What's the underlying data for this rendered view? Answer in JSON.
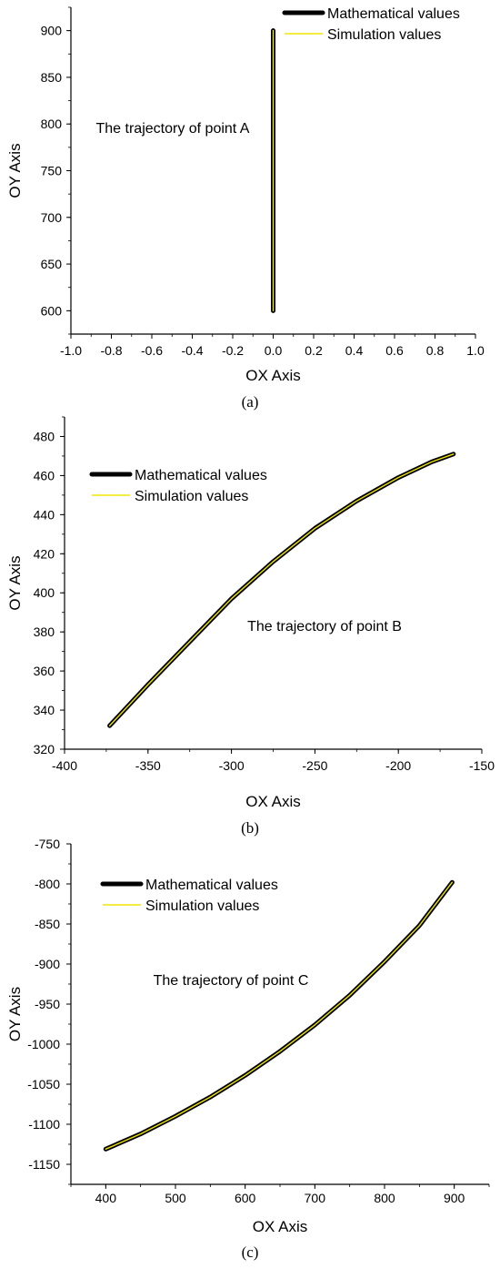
{
  "colors": {
    "mathematical": "#000000",
    "simulation": "#f0e600",
    "axis": "#000000"
  },
  "chart_data": [
    {
      "type": "line",
      "panel": "a",
      "caption": "(a)",
      "xlabel": "OX Axis",
      "ylabel": "OY Axis",
      "xlim": [
        -1.0,
        1.0
      ],
      "ylim": [
        575,
        925
      ],
      "x_ticks": [
        -1.0,
        -0.8,
        -0.6,
        -0.4,
        -0.2,
        0.0,
        0.2,
        0.4,
        0.6,
        0.8,
        1.0
      ],
      "x_tick_labels": [
        "-1.0",
        "-0.8",
        "-0.6",
        "-0.4",
        "-0.2",
        "0.0",
        "0.2",
        "0.4",
        "0.6",
        "0.8",
        "1.0"
      ],
      "y_ticks": [
        600,
        650,
        700,
        750,
        800,
        850,
        900
      ],
      "y_tick_labels": [
        "600",
        "650",
        "700",
        "750",
        "800",
        "850",
        "900"
      ],
      "annotation": "The trajectory of point A",
      "legend": [
        "Mathematical values",
        "Simulation values"
      ],
      "legend_position": "top-right",
      "grid": false,
      "series": [
        {
          "name": "Mathematical values",
          "x": [
            0,
            0
          ],
          "y": [
            600,
            900
          ]
        },
        {
          "name": "Simulation values",
          "x": [
            0,
            0
          ],
          "y": [
            600,
            900
          ]
        }
      ]
    },
    {
      "type": "line",
      "panel": "b",
      "caption": "(b)",
      "xlabel": "OX Axis",
      "ylabel": "OY Axis",
      "xlim": [
        -400,
        -150
      ],
      "ylim": [
        320,
        490
      ],
      "x_ticks": [
        -400,
        -350,
        -300,
        -250,
        -200,
        -150
      ],
      "x_tick_labels": [
        "-400",
        "-350",
        "-300",
        "-250",
        "-200",
        "-150"
      ],
      "y_ticks": [
        320,
        340,
        360,
        380,
        400,
        420,
        440,
        460,
        480
      ],
      "y_tick_labels": [
        "320",
        "340",
        "360",
        "380",
        "400",
        "420",
        "440",
        "460",
        "480"
      ],
      "annotation": "The trajectory of point B",
      "legend": [
        "Mathematical values",
        "Simulation values"
      ],
      "legend_position": "top-left",
      "grid": false,
      "series": [
        {
          "name": "Mathematical values",
          "x": [
            -373,
            -350,
            -325,
            -300,
            -275,
            -250,
            -225,
            -200,
            -180,
            -167
          ],
          "y": [
            332,
            353,
            375,
            397,
            416,
            433,
            447,
            459,
            467,
            471
          ]
        },
        {
          "name": "Simulation values",
          "x": [
            -373,
            -350,
            -325,
            -300,
            -275,
            -250,
            -225,
            -200,
            -180,
            -167
          ],
          "y": [
            332,
            353,
            375,
            397,
            416,
            433,
            447,
            459,
            467,
            471
          ]
        }
      ]
    },
    {
      "type": "line",
      "panel": "c",
      "caption": "(c)",
      "xlabel": "OX Axis",
      "ylabel": "OY Axis",
      "xlim": [
        350,
        950
      ],
      "ylim": [
        -1175,
        -750
      ],
      "x_ticks": [
        400,
        500,
        600,
        700,
        800,
        900
      ],
      "x_tick_labels": [
        "400",
        "500",
        "600",
        "700",
        "800",
        "900"
      ],
      "y_ticks": [
        -1150,
        -1100,
        -1050,
        -1000,
        -950,
        -900,
        -850,
        -800,
        -750
      ],
      "y_tick_labels": [
        "-1150",
        "-1100",
        "-1050",
        "-1000",
        "-950",
        "-900",
        "-850",
        "-800",
        "-750"
      ],
      "annotation": "The trajectory of point C",
      "legend": [
        "Mathematical values",
        "Simulation values"
      ],
      "legend_position": "top-left",
      "grid": false,
      "series": [
        {
          "name": "Mathematical values",
          "x": [
            400,
            450,
            500,
            550,
            600,
            650,
            700,
            750,
            800,
            850,
            897
          ],
          "y": [
            -1131,
            -1112,
            -1090,
            -1066,
            -1039,
            -1009,
            -976,
            -939,
            -897,
            -852,
            -798
          ]
        },
        {
          "name": "Simulation values",
          "x": [
            400,
            450,
            500,
            550,
            600,
            650,
            700,
            750,
            800,
            850,
            897
          ],
          "y": [
            -1131,
            -1112,
            -1090,
            -1066,
            -1039,
            -1009,
            -976,
            -939,
            -897,
            -852,
            -798
          ]
        }
      ]
    }
  ]
}
